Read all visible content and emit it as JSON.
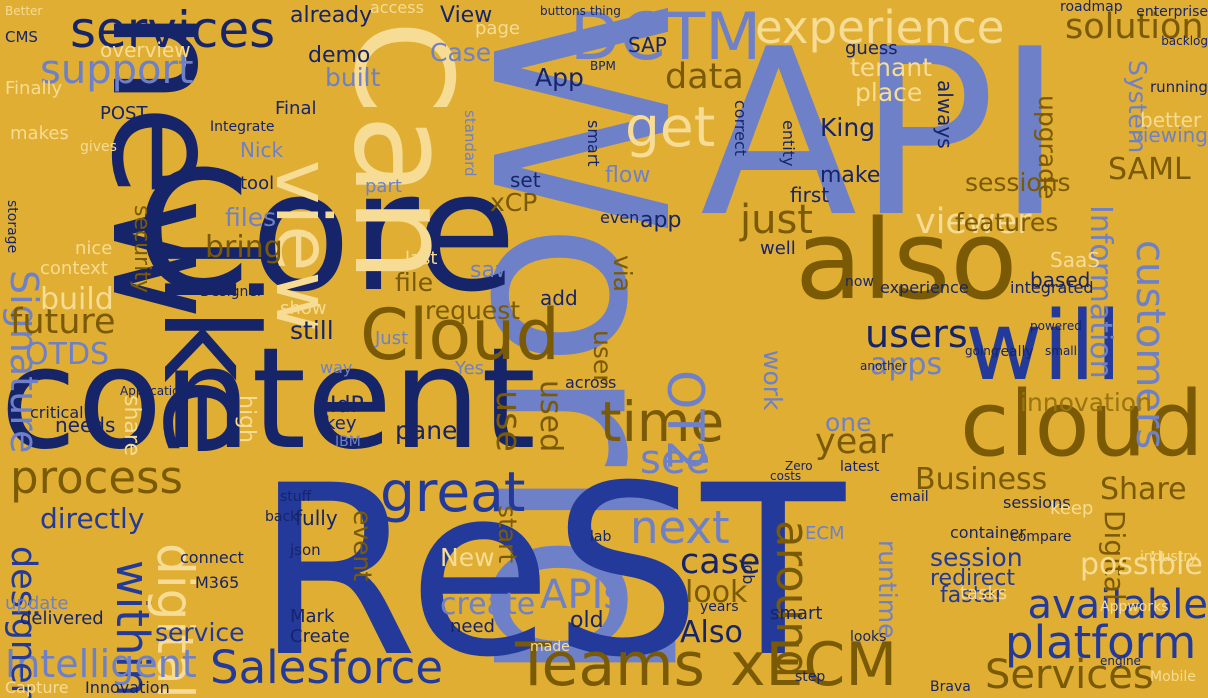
{
  "background_color": "#e0ae32",
  "palette": {
    "navy": "#16246a",
    "blue": "#233a9a",
    "periwinkle": "#6e80c8",
    "cream": "#f6dc94",
    "olive": "#7a5a04",
    "gold_dark": "#9a7410"
  },
  "words": [
    "World",
    "API",
    "Core",
    "ReST",
    "content",
    "new",
    "like",
    "Can",
    "also",
    "will",
    "cloud",
    "Cloud",
    "view",
    "DCTM",
    "services",
    "support",
    "experience",
    "get",
    "Teams",
    "xECM",
    "Salesforce",
    "great",
    "time",
    "within",
    "digital",
    "around",
    "platform",
    "Services",
    "available",
    "process",
    "next",
    "OT2",
    "Intelligent",
    "Signature",
    "OTDS",
    "future",
    "build",
    "customers",
    "innovation",
    "APIs",
    "see",
    "users",
    "viewer",
    "just",
    "data",
    "solution",
    "SAML",
    "System",
    "Information",
    "Business",
    "Share",
    "Digital",
    "possible",
    "session",
    "redirect",
    "faster",
    "Also",
    "look",
    "case",
    "create",
    "New",
    "designer",
    "directly",
    "bring",
    "files",
    "still",
    "request",
    "file",
    "panel",
    "apps",
    "features",
    "sessions",
    "upgrade",
    "King",
    "place",
    "tenant",
    "App",
    "Case",
    "demo",
    "built",
    "already",
    "overview",
    "View",
    "SAP",
    "xCP",
    "flow",
    "app",
    "sessions",
    "smart",
    "service",
    "Create",
    "Mark",
    "M365",
    "delivered",
    "update",
    "Capture",
    "Innovation",
    "Brava",
    "Mobile",
    "runtime",
    "ECM",
    "json",
    "connect",
    "fully",
    "event",
    "start",
    "Finally",
    "makes",
    "POST",
    "Final",
    "tool",
    "security",
    "context",
    "nice",
    "Nick",
    "IdP",
    "key",
    "needs",
    "critical",
    "IBM",
    "year",
    "one",
    "work",
    "via",
    "SaaS",
    "based",
    "keep",
    "latest",
    "saw",
    "add",
    "user",
    "use",
    "used",
    "Just",
    "show",
    "last",
    "well",
    "first",
    "make",
    "set",
    "even",
    "part",
    "guess",
    "always",
    "better",
    "viewing",
    "running",
    "Better",
    "CMS",
    "access",
    "page",
    "correct",
    "entity",
    "Zero",
    "job",
    "costs",
    "email",
    "across",
    "Yes",
    "way",
    "back",
    "stuff",
    "high",
    "share",
    "made",
    "lab",
    "old",
    "need",
    "years",
    "step",
    "looks",
    "tasks",
    "container",
    "engine",
    "industry",
    "Appworks",
    "compare",
    "smart",
    "integrated",
    "experience",
    "going",
    "now",
    "really",
    "another",
    "small",
    "Designer",
    "Application",
    "storage",
    "gives",
    "Integrate",
    "buttons",
    "thing",
    "standard",
    "BPM",
    "roadmap",
    "enterprise",
    "backlog",
    "powered",
    "leverage",
    "Default"
  ]
}
